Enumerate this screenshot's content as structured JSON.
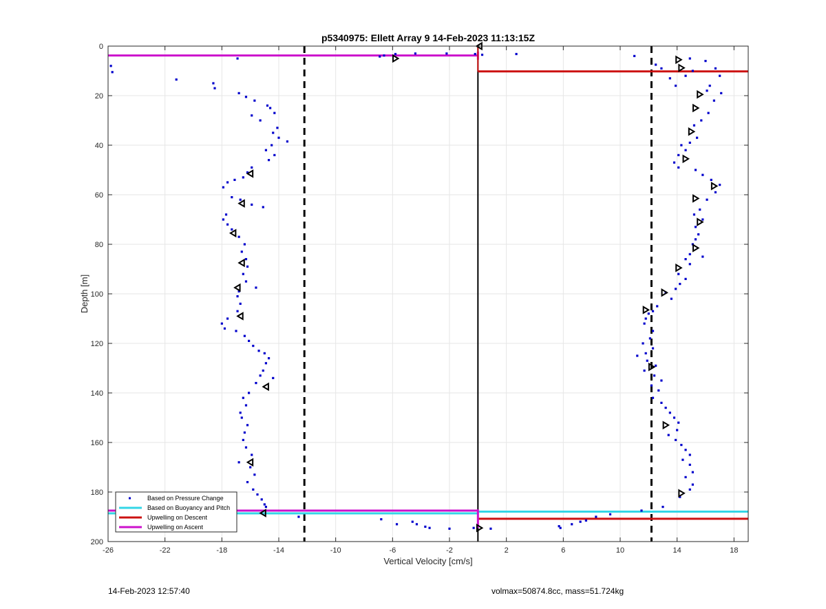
{
  "chart_data": {
    "type": "scatter",
    "title": "p5340975: Ellett Array 9 14-Feb-2023 11:13:15Z",
    "xlabel": "Vertical Velocity [cm/s]",
    "ylabel": "Depth [m]",
    "xlim": [
      -26,
      19
    ],
    "ylim": [
      0,
      200
    ],
    "y_reversed": true,
    "grid": true,
    "xticks": [
      -26,
      -22,
      -18,
      -14,
      -10,
      -6,
      -2,
      2,
      6,
      10,
      14,
      18
    ],
    "yticks": [
      0,
      20,
      40,
      60,
      80,
      100,
      120,
      140,
      160,
      180,
      200
    ],
    "legend_position": "bottom-left",
    "legend": [
      {
        "label": "Based on Pressure Change",
        "color": "#0000cc",
        "style": "dot"
      },
      {
        "label": "Based on Buoyancy and Pitch",
        "color": "#33d6e6",
        "style": "line"
      },
      {
        "label": "Upwelling on Descent",
        "color": "#cc1111",
        "style": "line"
      },
      {
        "label": "Upwelling on Ascent",
        "color": "#cc11cc",
        "style": "line"
      }
    ],
    "threshold_lines": [
      -12.2,
      12.2
    ],
    "zero_line": 0,
    "descent_upwelling": [
      {
        "x": [
          0,
          19
        ],
        "depth": 10.2
      },
      {
        "x": [
          0,
          19
        ],
        "depth": 190.8
      }
    ],
    "ascent_upwelling": [
      {
        "x": [
          -26,
          0
        ],
        "depth": 3.8
      },
      {
        "x": [
          -26,
          0
        ],
        "depth": 187.5
      }
    ],
    "buoyancy_pitch": [
      {
        "x": [
          -26,
          0
        ],
        "depth": 188.6
      },
      {
        "x": [
          0,
          19
        ],
        "depth": 187.9
      }
    ],
    "pressure_points": [
      [
        -25.8,
        8
      ],
      [
        -25.7,
        10.5
      ],
      [
        -21.2,
        13.5
      ],
      [
        -18.6,
        15
      ],
      [
        -18.5,
        17
      ],
      [
        -16.9,
        5
      ],
      [
        -16.8,
        19
      ],
      [
        -16.3,
        20.5
      ],
      [
        -15.7,
        22
      ],
      [
        -15.9,
        28
      ],
      [
        -15.3,
        30
      ],
      [
        -14.8,
        24
      ],
      [
        -14.6,
        25
      ],
      [
        -14.3,
        27
      ],
      [
        -14.1,
        33
      ],
      [
        -14.4,
        35
      ],
      [
        -14.0,
        37
      ],
      [
        -13.4,
        38.5
      ],
      [
        -14.5,
        40
      ],
      [
        -14.9,
        42
      ],
      [
        -14.3,
        44
      ],
      [
        -14.7,
        46
      ],
      [
        -15.9,
        49
      ],
      [
        -16.2,
        51
      ],
      [
        -16.5,
        53
      ],
      [
        -17.1,
        54
      ],
      [
        -17.6,
        55
      ],
      [
        -17.9,
        57
      ],
      [
        -17.3,
        61
      ],
      [
        -16.7,
        62
      ],
      [
        -15.9,
        64
      ],
      [
        -15.1,
        65
      ],
      [
        -17.7,
        68
      ],
      [
        -17.9,
        70
      ],
      [
        -17.6,
        72
      ],
      [
        -17.3,
        74
      ],
      [
        -16.8,
        77
      ],
      [
        -16.4,
        80
      ],
      [
        -16.6,
        83
      ],
      [
        -16.3,
        86
      ],
      [
        -16.2,
        89
      ],
      [
        -16.5,
        92
      ],
      [
        -16.3,
        95
      ],
      [
        -15.6,
        97.5
      ],
      [
        -16.8,
        99
      ],
      [
        -16.9,
        101
      ],
      [
        -16.7,
        104
      ],
      [
        -16.9,
        107
      ],
      [
        -17.6,
        110
      ],
      [
        -18.0,
        112
      ],
      [
        -17.8,
        114
      ],
      [
        -17.0,
        115
      ],
      [
        -16.4,
        117
      ],
      [
        -16.1,
        119
      ],
      [
        -15.8,
        121
      ],
      [
        -15.4,
        123
      ],
      [
        -15.0,
        124
      ],
      [
        -14.7,
        126
      ],
      [
        -14.9,
        128
      ],
      [
        -15.1,
        131
      ],
      [
        -15.3,
        133
      ],
      [
        -14.4,
        134
      ],
      [
        -15.6,
        136
      ],
      [
        -16.1,
        140
      ],
      [
        -16.5,
        142
      ],
      [
        -16.3,
        145
      ],
      [
        -16.7,
        148
      ],
      [
        -16.6,
        150
      ],
      [
        -16.2,
        153
      ],
      [
        -16.4,
        156
      ],
      [
        -16.5,
        159
      ],
      [
        -16.3,
        162
      ],
      [
        -15.9,
        165
      ],
      [
        -16.8,
        168
      ],
      [
        -16.0,
        170
      ],
      [
        -15.7,
        173
      ],
      [
        -16.2,
        176
      ],
      [
        -15.8,
        179
      ],
      [
        -15.5,
        181
      ],
      [
        -15.2,
        183
      ],
      [
        -15.0,
        185
      ],
      [
        -14.9,
        186
      ],
      [
        -12.6,
        190
      ],
      [
        -6.9,
        4.2
      ],
      [
        -6.6,
        3.8
      ],
      [
        -5.8,
        3.2
      ],
      [
        -4.4,
        3
      ],
      [
        -2.2,
        3
      ],
      [
        -0.2,
        3.2
      ],
      [
        0.3,
        3.5
      ],
      [
        2.7,
        3.2
      ],
      [
        -6.8,
        191
      ],
      [
        -5.7,
        193
      ],
      [
        -4.6,
        192
      ],
      [
        -4.3,
        193
      ],
      [
        -3.7,
        194
      ],
      [
        -3.4,
        194.5
      ],
      [
        -2.0,
        194.8
      ],
      [
        -0.3,
        194.5
      ],
      [
        0.9,
        194.8
      ],
      [
        5.7,
        193.8
      ],
      [
        5.8,
        194.5
      ],
      [
        6.6,
        193
      ],
      [
        7.2,
        192
      ],
      [
        7.6,
        191.5
      ],
      [
        8.3,
        190
      ],
      [
        9.3,
        189
      ],
      [
        11.0,
        4
      ],
      [
        12.5,
        7.5
      ],
      [
        12.9,
        9
      ],
      [
        13.5,
        13
      ],
      [
        13.9,
        16
      ],
      [
        14.6,
        12
      ],
      [
        15.1,
        10
      ],
      [
        14.9,
        5
      ],
      [
        16.0,
        6
      ],
      [
        16.7,
        9
      ],
      [
        17.0,
        12
      ],
      [
        16.3,
        16
      ],
      [
        16.1,
        18
      ],
      [
        17.1,
        19
      ],
      [
        16.6,
        22
      ],
      [
        16.2,
        27
      ],
      [
        15.7,
        30
      ],
      [
        15.2,
        32
      ],
      [
        15.4,
        37
      ],
      [
        14.9,
        39
      ],
      [
        14.3,
        40
      ],
      [
        14.6,
        42
      ],
      [
        14.1,
        44
      ],
      [
        13.8,
        47
      ],
      [
        14.1,
        49
      ],
      [
        15.3,
        50
      ],
      [
        15.8,
        52
      ],
      [
        16.4,
        54
      ],
      [
        17.0,
        56
      ],
      [
        16.7,
        59
      ],
      [
        16.1,
        62
      ],
      [
        15.6,
        66
      ],
      [
        15.2,
        68
      ],
      [
        15.8,
        70
      ],
      [
        15.3,
        73
      ],
      [
        15.5,
        76
      ],
      [
        15.3,
        78
      ],
      [
        15.1,
        80
      ],
      [
        14.9,
        84
      ],
      [
        14.6,
        86
      ],
      [
        15.8,
        85
      ],
      [
        14.9,
        88
      ],
      [
        14.1,
        92
      ],
      [
        14.6,
        94
      ],
      [
        14.2,
        96
      ],
      [
        13.9,
        98
      ],
      [
        13.2,
        99.5
      ],
      [
        13.6,
        102
      ],
      [
        12.6,
        105
      ],
      [
        12.3,
        107
      ],
      [
        12.0,
        108
      ],
      [
        11.8,
        110
      ],
      [
        11.7,
        112
      ],
      [
        12.3,
        115
      ],
      [
        12.1,
        118
      ],
      [
        11.6,
        120
      ],
      [
        12.3,
        122
      ],
      [
        11.8,
        124
      ],
      [
        11.2,
        125
      ],
      [
        11.9,
        127
      ],
      [
        12.5,
        129
      ],
      [
        11.7,
        131
      ],
      [
        12.4,
        133
      ],
      [
        12.9,
        135
      ],
      [
        12.2,
        137
      ],
      [
        12.7,
        139
      ],
      [
        12.3,
        142
      ],
      [
        12.9,
        144
      ],
      [
        13.2,
        146
      ],
      [
        13.5,
        148
      ],
      [
        13.8,
        150
      ],
      [
        14.1,
        152
      ],
      [
        14.0,
        155
      ],
      [
        13.4,
        157
      ],
      [
        13.9,
        159
      ],
      [
        14.3,
        161
      ],
      [
        14.6,
        163
      ],
      [
        14.9,
        165
      ],
      [
        14.4,
        167
      ],
      [
        14.9,
        169
      ],
      [
        15.1,
        172
      ],
      [
        14.6,
        174
      ],
      [
        15.1,
        177
      ],
      [
        14.9,
        179
      ],
      [
        14.2,
        182
      ],
      [
        13.0,
        186
      ],
      [
        11.5,
        187.5
      ]
    ],
    "descent_markers": [
      [
        -5.8,
        5
      ],
      [
        14.1,
        5.5
      ],
      [
        14.3,
        8.8
      ],
      [
        15.6,
        19.5
      ],
      [
        15.3,
        25
      ],
      [
        15.0,
        34.5
      ],
      [
        14.6,
        45.5
      ],
      [
        16.6,
        56.5
      ],
      [
        15.3,
        61.5
      ],
      [
        15.6,
        71
      ],
      [
        15.3,
        81.5
      ],
      [
        14.1,
        89.5
      ],
      [
        13.1,
        99.5
      ],
      [
        11.8,
        106.5
      ],
      [
        12.2,
        129.5
      ],
      [
        13.2,
        153
      ],
      [
        14.3,
        180.5
      ],
      [
        0.1,
        194.5
      ]
    ],
    "ascent_markers": [
      [
        -15.1,
        188.5
      ],
      [
        -16.0,
        168
      ],
      [
        -14.9,
        137.5
      ],
      [
        -16.7,
        109
      ],
      [
        -16.9,
        97.5
      ],
      [
        -16.6,
        87.5
      ],
      [
        -17.2,
        75.5
      ],
      [
        -16.6,
        63.5
      ],
      [
        -16.0,
        51.5
      ],
      [
        0.1,
        0
      ]
    ]
  },
  "footer": {
    "left": "14-Feb-2023 12:57:40",
    "right": "volmax=50874.8cc, mass=51.724kg"
  }
}
